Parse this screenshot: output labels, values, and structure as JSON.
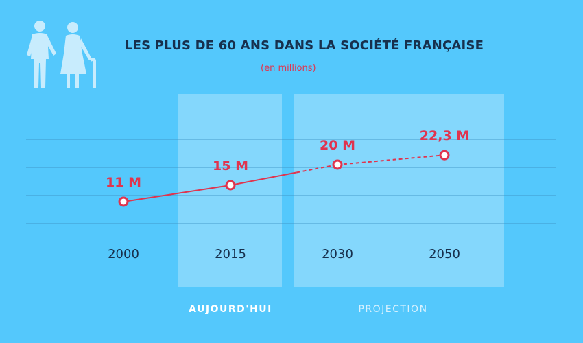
{
  "header": {
    "title": "LES PLUS DE 60 ANS DANS LA SOCIÉTÉ FRANÇAISE",
    "subtitle": "(en millions)",
    "icon": "elderly-couple-icon"
  },
  "bands": {
    "today_label": "AUJOURD'HUI",
    "projection_label": "PROJECTION"
  },
  "colors": {
    "background": "#54c8fc",
    "band": "#84d7fc",
    "line": "#e0344e",
    "grid": "#3a8fbf",
    "text": "#17304d",
    "icon": "#c8ecfd"
  },
  "chart_data": {
    "type": "line",
    "categories": [
      "2000",
      "2015",
      "2030",
      "2050"
    ],
    "values": [
      11,
      15,
      20,
      22.3
    ],
    "data_labels": [
      "11 M",
      "15 M",
      "20 M",
      "22,3 M"
    ],
    "projected_from_index": 2,
    "title": "LES PLUS DE 60 ANS DANS LA SOCIÉTÉ FRANÇAISE",
    "subtitle": "(en millions)",
    "xlabel": "",
    "ylabel": "",
    "grid": true,
    "legend": "none"
  }
}
